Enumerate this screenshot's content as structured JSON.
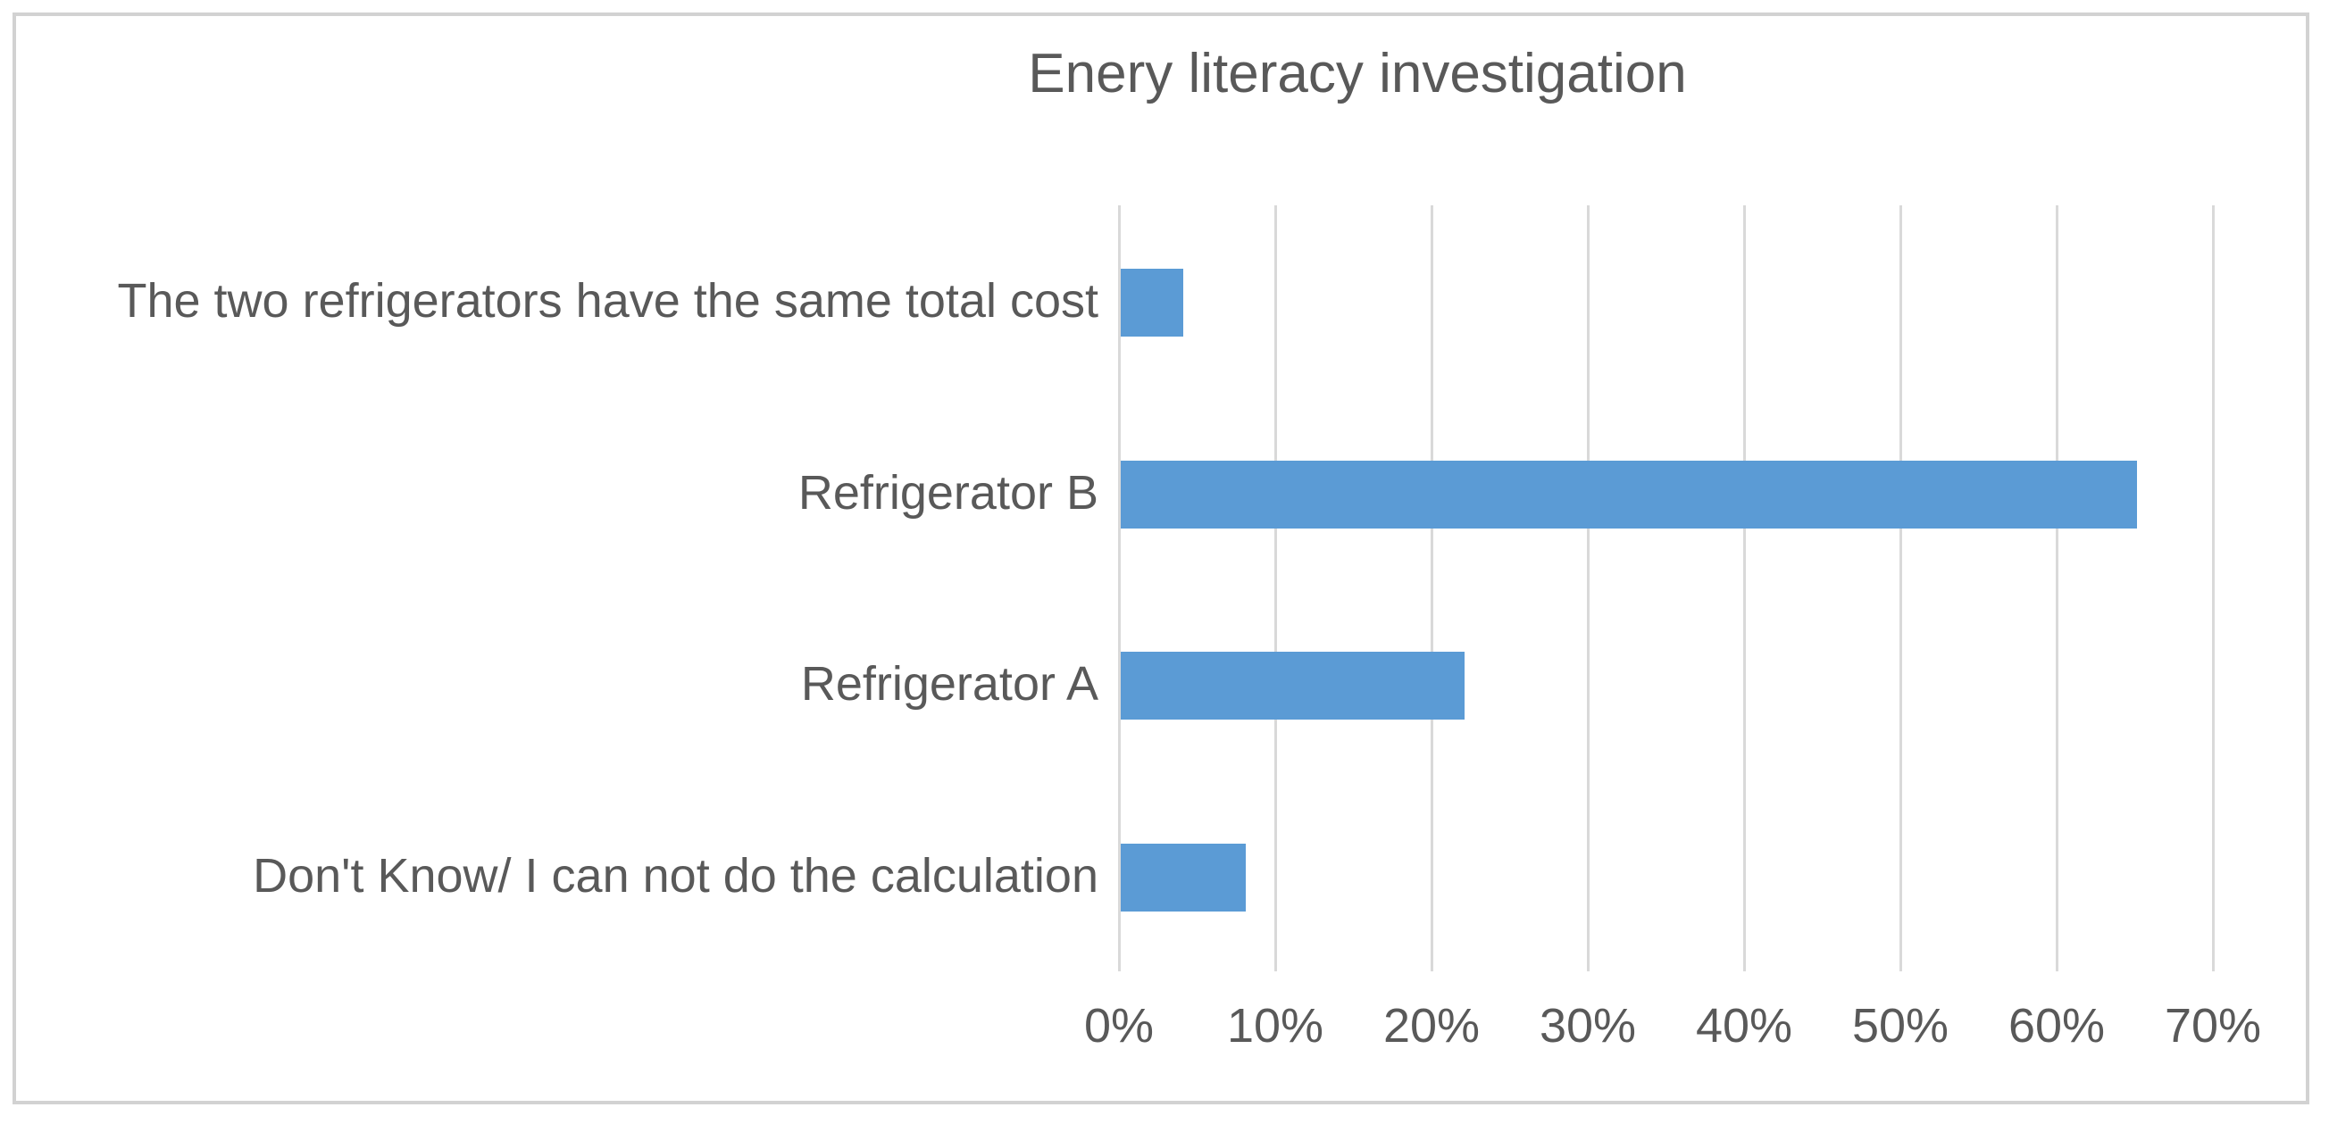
{
  "chart_data": {
    "type": "bar",
    "orientation": "horizontal",
    "title": "Enery literacy investigation",
    "categories": [
      "The two refrigerators have the same total cost",
      "Refrigerator B",
      "Refrigerator A",
      "Don't Know/ I can not do the calculation"
    ],
    "values": [
      4,
      65,
      22,
      8
    ],
    "value_unit": "%",
    "xticks": [
      "0%",
      "10%",
      "20%",
      "30%",
      "40%",
      "50%",
      "60%",
      "70%"
    ],
    "xtick_values": [
      0,
      10,
      20,
      30,
      40,
      50,
      60,
      70
    ],
    "xlim": [
      0,
      70
    ],
    "grid": "vertical-only",
    "legend": false,
    "colors": {
      "bar_fill": "#5b9bd5",
      "gridline": "#d9d9d9",
      "text": "#595959",
      "chart_border": "#d2d2d2",
      "background": "#ffffff"
    }
  }
}
